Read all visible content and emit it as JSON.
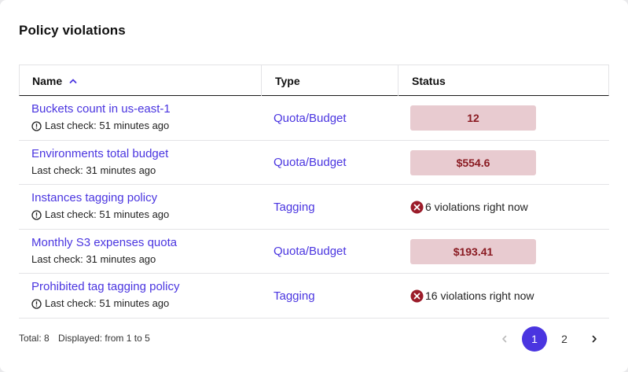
{
  "title": "Policy violations",
  "columns": {
    "name": "Name",
    "type": "Type",
    "status": "Status"
  },
  "rows": [
    {
      "name": "Buckets count in us-east-1",
      "last_check": "Last check: 51 minutes ago",
      "warning": true,
      "type": "Quota/Budget",
      "status_kind": "badge",
      "status": "12"
    },
    {
      "name": "Environments total budget",
      "last_check": "Last check: 31 minutes ago",
      "warning": false,
      "type": "Quota/Budget",
      "status_kind": "badge",
      "status": "$554.6"
    },
    {
      "name": "Instances tagging policy",
      "last_check": "Last check: 51 minutes ago",
      "warning": true,
      "type": "Tagging",
      "status_kind": "violations",
      "status": "6 violations right now"
    },
    {
      "name": "Monthly S3 expenses quota",
      "last_check": "Last check: 31 minutes ago",
      "warning": false,
      "type": "Quota/Budget",
      "status_kind": "badge",
      "status": "$193.41"
    },
    {
      "name": "Prohibited tag tagging policy",
      "last_check": "Last check: 51 minutes ago",
      "warning": true,
      "type": "Tagging",
      "status_kind": "violations",
      "status": "16 violations right now"
    }
  ],
  "footer": {
    "total": "Total: 8",
    "displayed": "Displayed: from 1 to 5"
  },
  "pagination": {
    "pages": [
      "1",
      "2"
    ],
    "current": "1"
  },
  "colors": {
    "accent": "#4a35e0",
    "badge_bg": "#e8cbd0",
    "badge_text": "#8a1b22",
    "error_icon": "#9b1c2a"
  }
}
